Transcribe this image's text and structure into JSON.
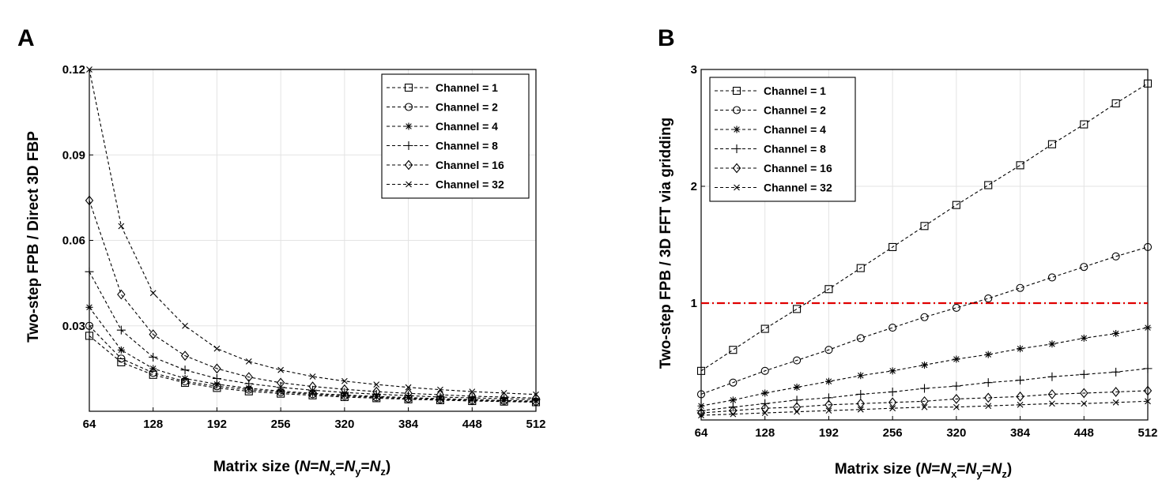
{
  "chart_data": [
    {
      "panel": "A",
      "type": "line",
      "title": "",
      "xlabel": "Matrix size (N=Nx=Ny=Nz)",
      "ylabel": "Two-step FPB / Direct 3D FBP",
      "xlim": [
        64,
        512
      ],
      "ylim": [
        0.0,
        0.12
      ],
      "xticks": [
        64,
        128,
        192,
        256,
        320,
        384,
        448,
        512
      ],
      "yticks": [
        0.03,
        0.06,
        0.09,
        0.12
      ],
      "ytick_labels": [
        "0.03",
        "0.06",
        "0.09",
        "0.12"
      ],
      "grid": true,
      "legend_position": "top-right",
      "x": [
        64,
        96,
        128,
        160,
        192,
        224,
        256,
        288,
        320,
        352,
        384,
        416,
        448,
        480,
        512
      ],
      "series": [
        {
          "name": "Channel = 1",
          "marker": "square",
          "values": [
            0.0265,
            0.0172,
            0.0128,
            0.01,
            0.0082,
            0.007,
            0.0062,
            0.0056,
            0.005,
            0.0046,
            0.0042,
            0.0039,
            0.0036,
            0.0034,
            0.0032
          ]
        },
        {
          "name": "Channel = 2",
          "marker": "circle",
          "values": [
            0.03,
            0.0185,
            0.0135,
            0.0105,
            0.0088,
            0.0076,
            0.0067,
            0.006,
            0.0054,
            0.0049,
            0.0045,
            0.0042,
            0.0039,
            0.0037,
            0.0034
          ]
        },
        {
          "name": "Channel = 4",
          "marker": "asterisk",
          "values": [
            0.0365,
            0.0215,
            0.015,
            0.0115,
            0.0095,
            0.0081,
            0.0071,
            0.0063,
            0.0057,
            0.0052,
            0.0048,
            0.0044,
            0.0041,
            0.0038,
            0.0036
          ]
        },
        {
          "name": "Channel = 8",
          "marker": "plus",
          "values": [
            0.049,
            0.0285,
            0.019,
            0.0145,
            0.0115,
            0.0097,
            0.0084,
            0.0074,
            0.0066,
            0.006,
            0.0055,
            0.005,
            0.0047,
            0.0044,
            0.0041
          ]
        },
        {
          "name": "Channel = 16",
          "marker": "diamond",
          "values": [
            0.074,
            0.041,
            0.027,
            0.0195,
            0.015,
            0.012,
            0.01,
            0.0087,
            0.0077,
            0.0069,
            0.0063,
            0.0058,
            0.0053,
            0.005,
            0.0046
          ]
        },
        {
          "name": "Channel = 32",
          "marker": "x",
          "values": [
            0.12,
            0.065,
            0.0415,
            0.03,
            0.022,
            0.0175,
            0.0145,
            0.0122,
            0.0106,
            0.0094,
            0.0084,
            0.0076,
            0.0069,
            0.0064,
            0.0059
          ]
        }
      ]
    },
    {
      "panel": "B",
      "type": "line",
      "title": "",
      "xlabel": "Matrix size (N=Nx=Ny=Nz)",
      "ylabel": "Two-step FPB / 3D FFT via gridding",
      "xlim": [
        64,
        512
      ],
      "ylim": [
        0.0,
        3.0
      ],
      "xticks": [
        64,
        128,
        192,
        256,
        320,
        384,
        448,
        512
      ],
      "yticks": [
        1,
        2,
        3
      ],
      "ytick_labels": [
        "1",
        "2",
        "3"
      ],
      "grid": true,
      "legend_position": "top-left",
      "reference_line": {
        "y": 1.0,
        "color": "#e00000",
        "style": "dash-dot"
      },
      "x": [
        64,
        96,
        128,
        160,
        192,
        224,
        256,
        288,
        320,
        352,
        384,
        416,
        448,
        480,
        512
      ],
      "series": [
        {
          "name": "Channel = 1",
          "marker": "square",
          "values": [
            0.42,
            0.6,
            0.78,
            0.95,
            1.12,
            1.3,
            1.48,
            1.66,
            1.84,
            2.01,
            2.18,
            2.36,
            2.53,
            2.71,
            2.88
          ]
        },
        {
          "name": "Channel = 2",
          "marker": "circle",
          "values": [
            0.22,
            0.32,
            0.42,
            0.51,
            0.6,
            0.7,
            0.79,
            0.88,
            0.96,
            1.04,
            1.13,
            1.22,
            1.31,
            1.4,
            1.48
          ]
        },
        {
          "name": "Channel = 4",
          "marker": "asterisk",
          "values": [
            0.12,
            0.17,
            0.23,
            0.28,
            0.33,
            0.38,
            0.42,
            0.47,
            0.52,
            0.56,
            0.61,
            0.65,
            0.7,
            0.74,
            0.79
          ]
        },
        {
          "name": "Channel = 8",
          "marker": "plus",
          "values": [
            0.08,
            0.11,
            0.14,
            0.17,
            0.19,
            0.22,
            0.24,
            0.27,
            0.29,
            0.32,
            0.34,
            0.37,
            0.39,
            0.41,
            0.44
          ]
        },
        {
          "name": "Channel = 16",
          "marker": "diamond",
          "values": [
            0.06,
            0.08,
            0.1,
            0.11,
            0.13,
            0.14,
            0.15,
            0.16,
            0.18,
            0.19,
            0.2,
            0.22,
            0.23,
            0.24,
            0.25
          ]
        },
        {
          "name": "Channel = 32",
          "marker": "x",
          "values": [
            0.04,
            0.05,
            0.06,
            0.07,
            0.08,
            0.09,
            0.1,
            0.11,
            0.11,
            0.12,
            0.13,
            0.14,
            0.14,
            0.15,
            0.16
          ]
        }
      ]
    }
  ],
  "panels": [
    {
      "label": "A",
      "xlabel_parts": {
        "prefix": "Matrix size (",
        "n": "N",
        "eq1": "=",
        "nx": "N",
        "sx": "x",
        "eq2": "=",
        "ny": "N",
        "sy": "y",
        "eq3": "=",
        "nz": "N",
        "sz": "z",
        "suffix": ")"
      },
      "ylabel": "Two-step FPB / Direct 3D FBP"
    },
    {
      "label": "B",
      "xlabel_parts": {
        "prefix": "Matrix size (",
        "n": "N",
        "eq1": "=",
        "nx": "N",
        "sx": "x",
        "eq2": "=",
        "ny": "N",
        "sy": "y",
        "eq3": "=",
        "nz": "N",
        "sz": "z",
        "suffix": ")"
      },
      "ylabel": "Two-step FPB / 3D FFT via gridding"
    }
  ]
}
